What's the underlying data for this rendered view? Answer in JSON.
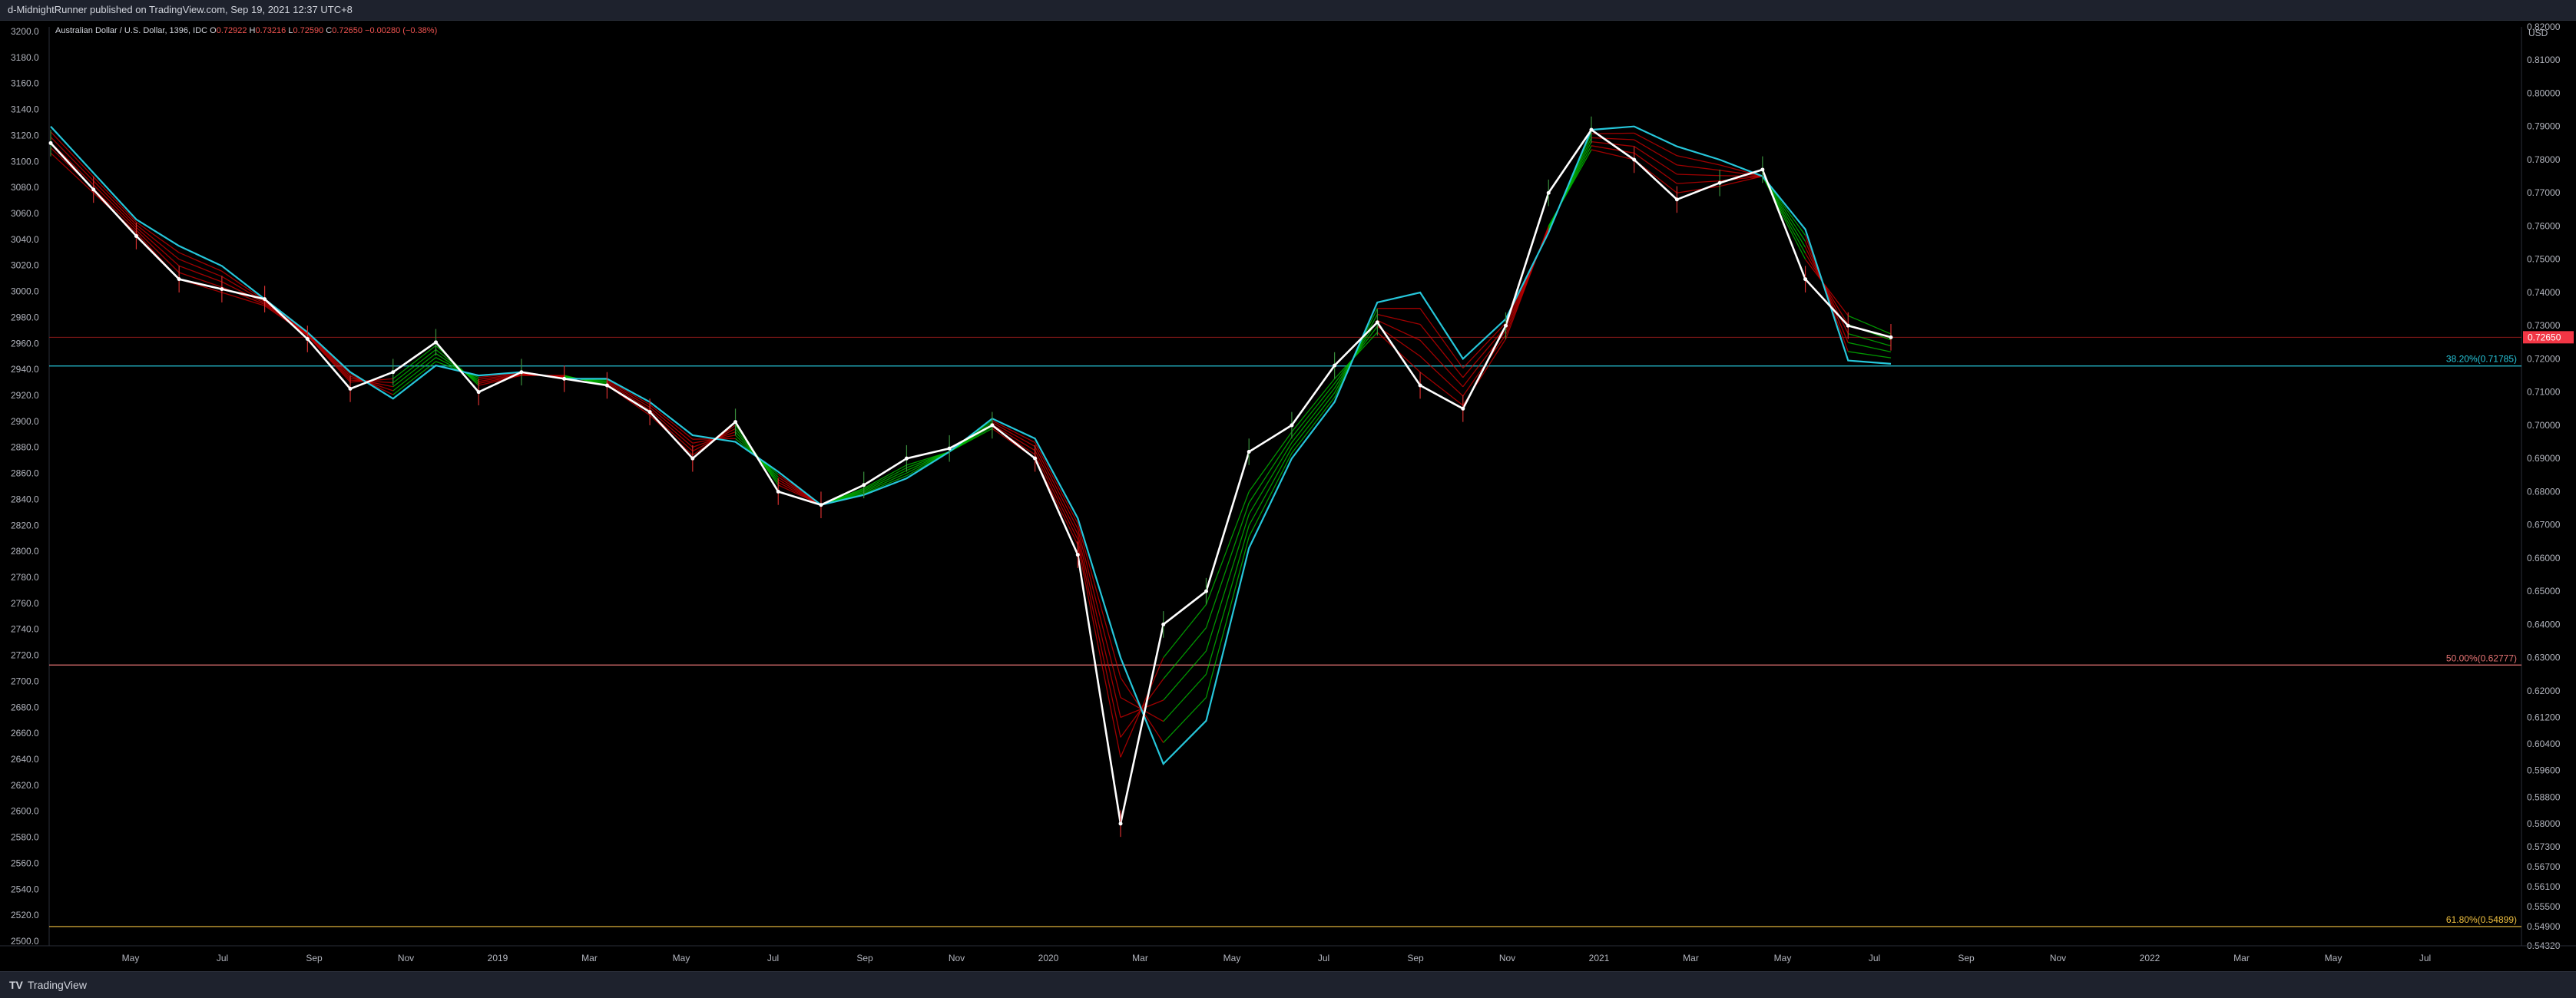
{
  "header": {
    "published": "d-MidnightRunner published on TradingView.com, Sep 19, 2021 12:37 UTC+8"
  },
  "legend": {
    "symbol": "Australian Dollar / U.S. Dollar, 1396, IDC",
    "o_label": "O",
    "o_value": "0.72922",
    "h_label": "H",
    "h_value": "0.73216",
    "l_label": "L",
    "l_value": "0.72590",
    "c_label": "C",
    "c_value": "0.72650",
    "change": "−0.00280 (−0.38%)"
  },
  "footer": {
    "brand_mark": "TV",
    "brand": "TradingView"
  },
  "colors": {
    "price": "#ffffff",
    "ema_cyan": "#26c6da",
    "ribbon_red": "#d50000",
    "ribbon_green": "#00c800",
    "fib382": "#26c6da",
    "fib50": "#e57373",
    "fib618": "#f0c040",
    "last_price_bg": "#f23645",
    "candle_red": "#d32f2f",
    "candle_green": "#388e3c"
  },
  "chart_data": {
    "type": "line",
    "title": "Australian Dollar / U.S. Dollar",
    "currency": "USD",
    "left_axis": {
      "ticks": [
        "3200.0",
        "3180.0",
        "3160.0",
        "3140.0",
        "3120.0",
        "3100.0",
        "3080.0",
        "3060.0",
        "3040.0",
        "3020.0",
        "3000.0",
        "2980.0",
        "2960.0",
        "2940.0",
        "2920.0",
        "2900.0",
        "2880.0",
        "2860.0",
        "2840.0",
        "2820.0",
        "2800.0",
        "2780.0",
        "2760.0",
        "2740.0",
        "2720.0",
        "2700.0",
        "2680.0",
        "2660.0",
        "2640.0",
        "2620.0",
        "2600.0",
        "2580.0",
        "2560.0",
        "2540.0",
        "2520.0",
        "2500.0"
      ]
    },
    "right_axis": {
      "ticks": [
        "0.82000",
        "0.81000",
        "0.80000",
        "0.79000",
        "0.78000",
        "0.77000",
        "0.76000",
        "0.75000",
        "0.74000",
        "0.73000",
        "0.72000",
        "0.71000",
        "0.70000",
        "0.69000",
        "0.68000",
        "0.67000",
        "0.66000",
        "0.65000",
        "0.64000",
        "0.63000",
        "0.62000",
        "0.61200",
        "0.60400",
        "0.59600",
        "0.58800",
        "0.58000",
        "0.57300",
        "0.56700",
        "0.56100",
        "0.55500",
        "0.54900",
        "0.54320"
      ],
      "last_price": "0.72650",
      "ylim": [
        0.5432,
        0.82
      ]
    },
    "x_axis": {
      "ticks": [
        "May",
        "Jul",
        "Sep",
        "Nov",
        "2019",
        "Mar",
        "May",
        "Jul",
        "Sep",
        "Nov",
        "2020",
        "Mar",
        "May",
        "Jul",
        "Sep",
        "Nov",
        "2021",
        "Mar",
        "May",
        "Jul",
        "Sep",
        "Nov",
        "2022",
        "Mar",
        "May",
        "Jul"
      ]
    },
    "fib_levels": [
      {
        "label": "38.20%(0.71785)",
        "value": 0.71785
      },
      {
        "label": "50.00%(0.62777)",
        "value": 0.62777
      },
      {
        "label": "61.80%(0.54899)",
        "value": 0.54899
      }
    ],
    "resistance_line": 0.7265,
    "series": [
      {
        "role": "close",
        "x": [
          "2018-03",
          "2018-04",
          "2018-05",
          "2018-06",
          "2018-07",
          "2018-08",
          "2018-09",
          "2018-10",
          "2018-11",
          "2018-12",
          "2019-01",
          "2019-02",
          "2019-03",
          "2019-04",
          "2019-05",
          "2019-06",
          "2019-07",
          "2019-08",
          "2019-09",
          "2019-10",
          "2019-11",
          "2019-12",
          "2020-01",
          "2020-02",
          "2020-03a",
          "2020-03b",
          "2020-04",
          "2020-05",
          "2020-06",
          "2020-07",
          "2020-08",
          "2020-09",
          "2020-10",
          "2020-11",
          "2020-12",
          "2021-01",
          "2021-02",
          "2021-03",
          "2021-04",
          "2021-05",
          "2021-06",
          "2021-07",
          "2021-08",
          "2021-09"
        ],
        "values": [
          0.785,
          0.771,
          0.757,
          0.744,
          0.741,
          0.738,
          0.726,
          0.711,
          0.716,
          0.725,
          0.71,
          0.716,
          0.714,
          0.712,
          0.704,
          0.69,
          0.701,
          0.68,
          0.676,
          0.682,
          0.69,
          0.693,
          0.7,
          0.69,
          0.661,
          0.58,
          0.64,
          0.65,
          0.692,
          0.7,
          0.718,
          0.731,
          0.712,
          0.705,
          0.73,
          0.77,
          0.789,
          0.78,
          0.768,
          0.773,
          0.777,
          0.744,
          0.73,
          0.7265
        ]
      },
      {
        "role": "long-ema",
        "values": [
          0.79,
          0.776,
          0.762,
          0.754,
          0.748,
          0.738,
          0.728,
          0.716,
          0.708,
          0.718,
          0.715,
          0.716,
          0.714,
          0.714,
          0.707,
          0.697,
          0.695,
          0.686,
          0.676,
          0.679,
          0.684,
          0.692,
          0.702,
          0.696,
          0.672,
          0.63,
          0.598,
          0.611,
          0.663,
          0.69,
          0.707,
          0.737,
          0.74,
          0.72,
          0.732,
          0.758,
          0.789,
          0.79,
          0.784,
          0.78,
          0.775,
          0.759,
          0.7195,
          0.7185
        ]
      },
      {
        "role": "short-ribbon",
        "values": [
          0.782,
          0.77,
          0.758,
          0.744,
          0.74,
          0.736,
          0.727,
          0.713,
          0.714,
          0.724,
          0.712,
          0.715,
          0.715,
          0.712,
          0.703,
          0.691,
          0.7,
          0.682,
          0.676,
          0.681,
          0.688,
          0.692,
          0.699,
          0.69,
          0.664,
          0.6,
          0.63,
          0.646,
          0.68,
          0.698,
          0.714,
          0.728,
          0.716,
          0.706,
          0.726,
          0.76,
          0.783,
          0.78,
          0.77,
          0.772,
          0.775,
          0.75,
          0.733,
          0.7275
        ]
      }
    ]
  }
}
